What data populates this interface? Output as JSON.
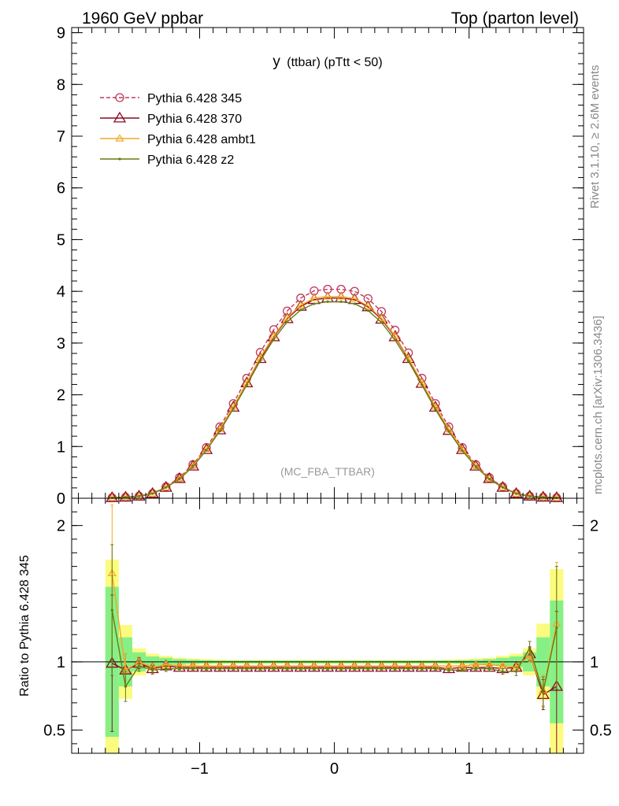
{
  "header": {
    "left": "1960 GeV ppbar",
    "right": "Top (parton level)"
  },
  "side_labels": {
    "rivet": "Rivet 3.1.10, ≥ 2.6M events",
    "mcplots": "mcplots.cern.ch [arXiv:1306.3436]"
  },
  "chart_data": [
    {
      "type": "line",
      "title": "y (ttbar) (pTtt < 50)",
      "title_main": "y",
      "title_sub": "(ttbar) (pTtt < 50)",
      "annotation": "(MC_FBA_TTBAR)",
      "legend_position": "top-left",
      "xlim": [
        -1.95,
        1.85
      ],
      "ylim": [
        0,
        9.1
      ],
      "yticks": [
        0,
        1,
        2,
        3,
        4,
        5,
        6,
        7,
        8,
        9
      ],
      "xticks": [
        -1,
        0,
        1
      ],
      "x": [
        -1.65,
        -1.55,
        -1.45,
        -1.35,
        -1.25,
        -1.15,
        -1.05,
        -0.95,
        -0.85,
        -0.75,
        -0.65,
        -0.55,
        -0.45,
        -0.35,
        -0.25,
        -0.15,
        -0.05,
        0.05,
        0.15,
        0.25,
        0.35,
        0.45,
        0.55,
        0.65,
        0.75,
        0.85,
        0.95,
        1.05,
        1.15,
        1.25,
        1.35,
        1.45,
        1.55,
        1.65
      ],
      "series": [
        {
          "name": "Pythia 6.428 345",
          "color": "#c0395a",
          "marker": "circle",
          "dash": true,
          "values": [
            0.01,
            0.02,
            0.04,
            0.09,
            0.22,
            0.4,
            0.65,
            0.98,
            1.38,
            1.83,
            2.32,
            2.82,
            3.26,
            3.62,
            3.87,
            4.01,
            4.04,
            4.04,
            4.0,
            3.86,
            3.61,
            3.25,
            2.81,
            2.32,
            1.83,
            1.38,
            0.98,
            0.65,
            0.4,
            0.22,
            0.09,
            0.04,
            0.02,
            0.01
          ]
        },
        {
          "name": "Pythia 6.428 370",
          "color": "#8b0a25",
          "marker": "triangle-open",
          "dash": false,
          "values": [
            0.01,
            0.02,
            0.04,
            0.09,
            0.21,
            0.38,
            0.62,
            0.94,
            1.32,
            1.76,
            2.23,
            2.7,
            3.12,
            3.47,
            3.71,
            3.84,
            3.87,
            3.87,
            3.84,
            3.7,
            3.46,
            3.12,
            2.7,
            2.22,
            1.76,
            1.31,
            0.94,
            0.62,
            0.38,
            0.21,
            0.09,
            0.04,
            0.02,
            0.01
          ]
        },
        {
          "name": "Pythia 6.428 ambt1",
          "color": "#f5a623",
          "marker": "triangle-small",
          "dash": false,
          "values": [
            0.01,
            0.02,
            0.04,
            0.09,
            0.21,
            0.38,
            0.63,
            0.95,
            1.34,
            1.77,
            2.24,
            2.72,
            3.14,
            3.49,
            3.73,
            3.87,
            3.9,
            3.9,
            3.86,
            3.72,
            3.48,
            3.14,
            2.71,
            2.24,
            1.77,
            1.33,
            0.95,
            0.63,
            0.38,
            0.21,
            0.09,
            0.04,
            0.02,
            0.01
          ]
        },
        {
          "name": "Pythia 6.428 z2",
          "color": "#6b7a12",
          "marker": "dot",
          "dash": false,
          "values": [
            0.01,
            0.02,
            0.04,
            0.09,
            0.21,
            0.37,
            0.61,
            0.93,
            1.3,
            1.73,
            2.19,
            2.66,
            3.07,
            3.41,
            3.64,
            3.76,
            3.8,
            3.8,
            3.76,
            3.63,
            3.4,
            3.06,
            2.65,
            2.19,
            1.72,
            1.29,
            0.92,
            0.61,
            0.37,
            0.21,
            0.09,
            0.04,
            0.02,
            0.01
          ]
        }
      ]
    },
    {
      "type": "line",
      "ylabel": "Ratio to Pythia 6.428 345",
      "ylim": [
        0.33,
        2.2
      ],
      "yticks": [
        0.5,
        1,
        2
      ],
      "ytick_labels": [
        "0.5",
        "1",
        "2"
      ],
      "xlim": [
        -1.95,
        1.85
      ],
      "xticks": [
        -1,
        0,
        1
      ],
      "xtick_labels": [
        "−1",
        "0",
        "1"
      ],
      "reference_line": 1,
      "band_inner_color": "#86f086",
      "band_outer_color": "#fbfb80",
      "band_inner_half": [
        0.55,
        0.18,
        0.07,
        0.04,
        0.03,
        0.02,
        0.015,
        0.012,
        0.01,
        0.01,
        0.01,
        0.01,
        0.01,
        0.01,
        0.01,
        0.01,
        0.01,
        0.01,
        0.01,
        0.01,
        0.01,
        0.01,
        0.01,
        0.01,
        0.01,
        0.01,
        0.012,
        0.015,
        0.02,
        0.03,
        0.04,
        0.07,
        0.18,
        0.45
      ],
      "band_outer_half": [
        0.75,
        0.27,
        0.1,
        0.06,
        0.045,
        0.03,
        0.025,
        0.02,
        0.018,
        0.015,
        0.015,
        0.015,
        0.015,
        0.015,
        0.015,
        0.015,
        0.015,
        0.015,
        0.015,
        0.015,
        0.015,
        0.015,
        0.015,
        0.015,
        0.015,
        0.018,
        0.02,
        0.025,
        0.03,
        0.045,
        0.06,
        0.1,
        0.28,
        0.68
      ],
      "series": [
        {
          "name": "Pythia 6.428 370",
          "color": "#8b0a25",
          "marker": "triangle-open",
          "values": [
            0.99,
            0.94,
            0.99,
            0.95,
            0.97,
            0.96,
            0.96,
            0.96,
            0.96,
            0.96,
            0.96,
            0.96,
            0.96,
            0.96,
            0.96,
            0.96,
            0.96,
            0.96,
            0.96,
            0.96,
            0.96,
            0.96,
            0.96,
            0.96,
            0.96,
            0.95,
            0.96,
            0.96,
            0.96,
            0.95,
            0.96,
            1.06,
            0.76,
            0.82
          ],
          "errors": [
            0.5,
            0.12,
            0.04,
            0.03,
            0.02,
            0.015,
            0.01,
            0.01,
            0.01,
            0.01,
            0.01,
            0.01,
            0.01,
            0.01,
            0.01,
            0.01,
            0.01,
            0.01,
            0.01,
            0.01,
            0.01,
            0.01,
            0.01,
            0.01,
            0.01,
            0.01,
            0.01,
            0.01,
            0.015,
            0.02,
            0.03,
            0.05,
            0.11,
            0.55
          ]
        },
        {
          "name": "Pythia 6.428 ambt1",
          "color": "#f5a623",
          "marker": "triangle-small",
          "values": [
            1.65,
            0.94,
            1.0,
            0.96,
            0.98,
            0.97,
            0.97,
            0.97,
            0.97,
            0.97,
            0.97,
            0.97,
            0.97,
            0.97,
            0.97,
            0.97,
            0.97,
            0.97,
            0.97,
            0.97,
            0.97,
            0.97,
            0.97,
            0.97,
            0.97,
            0.97,
            0.97,
            0.98,
            0.98,
            0.97,
            0.96,
            1.05,
            0.79,
            1.28
          ],
          "errors": [
            0.5,
            0.12,
            0.04,
            0.03,
            0.02,
            0.015,
            0.01,
            0.01,
            0.01,
            0.01,
            0.01,
            0.01,
            0.01,
            0.01,
            0.01,
            0.01,
            0.01,
            0.01,
            0.01,
            0.01,
            0.01,
            0.01,
            0.01,
            0.01,
            0.01,
            0.01,
            0.01,
            0.01,
            0.015,
            0.02,
            0.03,
            0.05,
            0.11,
            0.45
          ]
        },
        {
          "name": "Pythia 6.428 z2",
          "color": "#6b7a12",
          "marker": "dot",
          "values": [
            1.38,
            0.82,
            0.97,
            0.94,
            0.95,
            0.95,
            0.95,
            0.95,
            0.95,
            0.95,
            0.95,
            0.95,
            0.95,
            0.95,
            0.95,
            0.95,
            0.95,
            0.95,
            0.95,
            0.95,
            0.95,
            0.95,
            0.95,
            0.95,
            0.95,
            0.94,
            0.94,
            0.95,
            0.95,
            0.93,
            0.93,
            1.1,
            0.78,
            1.25
          ],
          "errors": [
            0.48,
            0.11,
            0.04,
            0.03,
            0.02,
            0.015,
            0.01,
            0.01,
            0.01,
            0.01,
            0.01,
            0.01,
            0.01,
            0.01,
            0.01,
            0.01,
            0.01,
            0.01,
            0.01,
            0.01,
            0.01,
            0.01,
            0.01,
            0.01,
            0.01,
            0.01,
            0.01,
            0.01,
            0.015,
            0.02,
            0.03,
            0.05,
            0.11,
            0.45
          ]
        }
      ]
    }
  ]
}
